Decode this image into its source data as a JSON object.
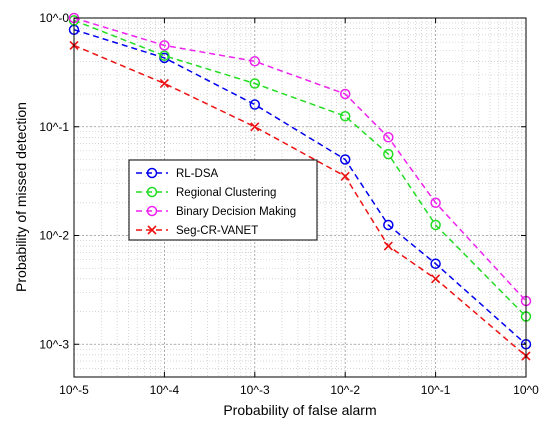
{
  "chart_data": {
    "type": "line",
    "title": "",
    "xlabel": "Probability of false alarm",
    "ylabel": "Probability of missed detection",
    "xscale": "log",
    "yscale": "log",
    "xlim": [
      1e-05,
      1
    ],
    "ylim": [
      0.0005,
      1
    ],
    "grid": true,
    "legend_position": "center-left",
    "x_tick_labels": [
      "10^-5",
      "10^-4",
      "10^-3",
      "10^-2",
      "10^-1",
      "10^0"
    ],
    "y_tick_labels": [
      "10^-3",
      "10^-2",
      "10^-1",
      "10^-0"
    ],
    "x": [
      1e-05,
      0.0001,
      0.001,
      0.01,
      0.03,
      0.1,
      1
    ],
    "series": [
      {
        "name": "RL-DSA",
        "color": "#0000ee",
        "marker": "circle",
        "values": [
          0.78,
          0.43,
          0.16,
          0.05,
          0.0125,
          0.0055,
          0.001
        ]
      },
      {
        "name": "Regional Clustering",
        "color": "#22dd22",
        "marker": "circle",
        "values": [
          0.95,
          0.45,
          0.25,
          0.125,
          0.056,
          0.0125,
          0.0018
        ]
      },
      {
        "name": "Binary Decision Making",
        "color": "#ee22ee",
        "marker": "circle",
        "values": [
          1.0,
          0.56,
          0.4,
          0.2,
          0.08,
          0.02,
          0.0025
        ]
      },
      {
        "name": "Seg-CR-VANET",
        "color": "#ee1111",
        "marker": "x",
        "values": [
          0.56,
          0.25,
          0.1,
          0.035,
          0.008,
          0.004,
          0.00078
        ]
      }
    ]
  }
}
